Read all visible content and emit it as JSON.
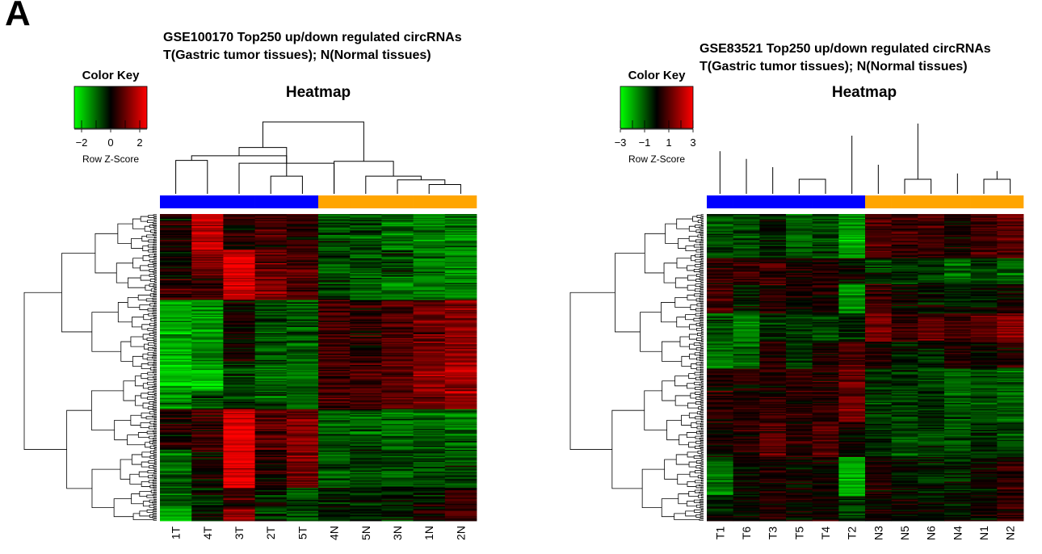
{
  "panel_label": "A",
  "chart_data": [
    {
      "type": "heatmap",
      "title_line1": "GSE100170 Top250 up/down regulated circRNAs",
      "title_line2": "T(Gastric tumor tissues); N(Normal tissues)",
      "heatmap_title": "Heatmap",
      "color_key": {
        "title": "Color Key",
        "label": "Row Z-Score",
        "ticks": [
          "−2",
          "0",
          "2"
        ],
        "tick_values": [
          -2,
          0,
          2
        ],
        "range": [
          -2.5,
          2.5
        ],
        "low_color": "#00ff00",
        "mid_color": "#000000",
        "high_color": "#ff0000"
      },
      "columns": [
        "1T",
        "4T",
        "3T",
        "2T",
        "5T",
        "4N",
        "5N",
        "3N",
        "1N",
        "2N"
      ],
      "column_groups": [
        "tumor",
        "tumor",
        "tumor",
        "tumor",
        "tumor",
        "normal",
        "normal",
        "normal",
        "normal",
        "normal"
      ],
      "group_colors": {
        "tumor": "#0000ff",
        "normal": "#ffa500"
      },
      "column_dendrogram": [
        [
          3,
          4,
          0.38
        ],
        [
          2,
          5,
          0.66
        ],
        [
          0,
          1,
          0.72
        ],
        [
          11,
          12,
          0.82
        ],
        [
          10,
          13,
          1.0
        ],
        [
          8,
          9,
          0.2
        ],
        [
          7,
          15,
          0.3
        ],
        [
          6,
          16,
          0.38
        ],
        [
          5,
          17,
          0.7
        ],
        [
          14,
          18,
          1.55
        ]
      ],
      "row_count": 250,
      "row_blocks": [
        {
          "rows": 29,
          "means": [
            0.2,
            1.8,
            0.3,
            0.6,
            0.4,
            -0.7,
            -0.8,
            -1.0,
            -1.1,
            -1.2
          ]
        },
        {
          "rows": 22,
          "means": [
            0.1,
            1.0,
            2.2,
            0.9,
            0.9,
            -0.8,
            -0.8,
            -0.6,
            -1.0,
            -1.3
          ]
        },
        {
          "rows": 19,
          "means": [
            0.4,
            0.5,
            1.8,
            1.2,
            0.6,
            -0.6,
            -1.0,
            -1.3,
            -1.3,
            -1.3
          ]
        },
        {
          "rows": 52,
          "means": [
            -1.6,
            -1.4,
            0.1,
            -0.8,
            -0.9,
            0.6,
            0.5,
            0.8,
            1.1,
            1.4
          ]
        },
        {
          "rows": 23,
          "means": [
            -1.9,
            -1.7,
            -0.6,
            -1.0,
            -1.0,
            0.7,
            0.6,
            0.8,
            1.4,
            1.6
          ]
        },
        {
          "rows": 14,
          "means": [
            -1.2,
            -0.8,
            -0.5,
            -0.6,
            -1.0,
            0.5,
            0.7,
            0.9,
            1.1,
            1.4
          ]
        },
        {
          "rows": 33,
          "means": [
            0.3,
            0.5,
            2.3,
            0.8,
            1.2,
            -0.8,
            -0.8,
            -1.0,
            -0.9,
            -1.0
          ]
        },
        {
          "rows": 31,
          "means": [
            -0.9,
            0.1,
            2.3,
            0.3,
            1.0,
            -0.8,
            -0.6,
            -0.6,
            -0.8,
            -0.7
          ]
        },
        {
          "rows": 17,
          "means": [
            -0.9,
            -0.3,
            0.6,
            -0.3,
            -0.6,
            -0.2,
            -0.4,
            -0.1,
            -0.2,
            0.5
          ]
        },
        {
          "rows": 10,
          "means": [
            -1.5,
            0.0,
            1.4,
            -0.5,
            -0.8,
            -0.2,
            -0.4,
            -0.3,
            0.3,
            0.6
          ]
        }
      ]
    },
    {
      "type": "heatmap",
      "title_line1": "GSE83521 Top250 up/down regulated circRNAs",
      "title_line2": "T(Gastric tumor tissues); N(Normal tissues)",
      "heatmap_title": "Heatmap",
      "color_key": {
        "title": "Color Key",
        "label": "Row Z-Score",
        "ticks": [
          "−3",
          "−1",
          "1",
          "3"
        ],
        "tick_values": [
          -3,
          -1,
          1,
          3
        ],
        "range": [
          -3,
          3
        ],
        "low_color": "#00ff00",
        "mid_color": "#000000",
        "high_color": "#ff0000"
      },
      "columns": [
        "T1",
        "T6",
        "T3",
        "T5",
        "T4",
        "T2",
        "N3",
        "N5",
        "N6",
        "N4",
        "N1",
        "N2"
      ],
      "column_groups": [
        "tumor",
        "tumor",
        "tumor",
        "tumor",
        "tumor",
        "tumor",
        "normal",
        "normal",
        "normal",
        "normal",
        "normal",
        "normal"
      ],
      "group_colors": {
        "tumor": "#0000ff",
        "normal": "#ffa500"
      },
      "column_dendrogram": [
        [
          3,
          4,
          0.3
        ],
        [
          2,
          13,
          0.55
        ],
        [
          1,
          14,
          0.72
        ],
        [
          0,
          15,
          0.88
        ],
        [
          7,
          8,
          0.3
        ],
        [
          10,
          11,
          0.3
        ],
        [
          9,
          18,
          0.42
        ],
        [
          17,
          19,
          0.47
        ],
        [
          6,
          20,
          0.6
        ],
        [
          5,
          21,
          1.2
        ],
        [
          16,
          22,
          1.45
        ]
      ],
      "row_count": 250,
      "row_blocks": [
        {
          "rows": 36,
          "means": [
            -0.8,
            -0.9,
            -0.2,
            -1.1,
            -0.8,
            -1.8,
            0.9,
            0.7,
            0.6,
            0.3,
            0.7,
            1.1
          ]
        },
        {
          "rows": 21,
          "means": [
            0.6,
            0.6,
            0.5,
            0.3,
            0.2,
            0.1,
            -0.6,
            -0.6,
            -0.7,
            -1.2,
            -0.6,
            -1.0
          ]
        },
        {
          "rows": 24,
          "means": [
            0.8,
            -0.4,
            0.4,
            0.2,
            0.2,
            -1.7,
            0.6,
            0.3,
            -0.1,
            -0.3,
            -0.2,
            0.2
          ]
        },
        {
          "rows": 23,
          "means": [
            -0.9,
            -1.5,
            -0.5,
            -0.7,
            -0.6,
            -0.4,
            1.4,
            0.8,
            1.1,
            0.8,
            1.0,
            1.6
          ]
        },
        {
          "rows": 22,
          "means": [
            -1.4,
            -1.0,
            0.4,
            -0.5,
            0.2,
            0.9,
            0.2,
            -0.2,
            -0.3,
            0.5,
            0.1,
            0.4
          ]
        },
        {
          "rows": 44,
          "means": [
            0.4,
            0.4,
            0.5,
            0.6,
            0.6,
            1.2,
            -0.5,
            -0.7,
            -0.6,
            -1.1,
            -0.9,
            -1.2
          ]
        },
        {
          "rows": 28,
          "means": [
            0.2,
            0.4,
            1.1,
            0.5,
            0.9,
            0.3,
            -0.5,
            -0.8,
            -0.8,
            -0.9,
            -0.6,
            -0.8
          ]
        },
        {
          "rows": 32,
          "means": [
            -1.3,
            0.0,
            0.3,
            0.0,
            0.2,
            -2.0,
            0.2,
            0.0,
            -0.4,
            -0.3,
            0.1,
            0.5
          ]
        },
        {
          "rows": 20,
          "means": [
            -0.3,
            0.0,
            0.4,
            0.2,
            0.1,
            -0.7,
            0.3,
            0.1,
            -0.1,
            -0.2,
            0.1,
            0.7
          ]
        }
      ]
    }
  ]
}
